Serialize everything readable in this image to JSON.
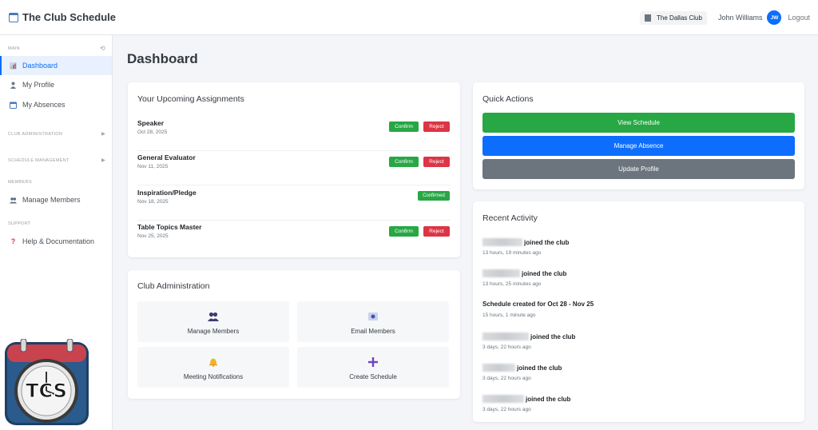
{
  "app": {
    "title": "The Club Schedule"
  },
  "topbar": {
    "club_name": "The Dallas Club",
    "user_name": "John Williams",
    "avatar_initials": "JW",
    "logout_label": "Logout"
  },
  "sidebar": {
    "sections": {
      "main": "MAIN",
      "club_admin": "CLUB ADMINISTRATION",
      "schedule_mgmt": "SCHEDULE MANAGEMENT",
      "members": "MEMBERS",
      "support": "SUPPORT"
    },
    "items": {
      "dashboard": "Dashboard",
      "my_profile": "My Profile",
      "my_absences": "My Absences",
      "manage_members": "Manage Members",
      "help": "Help & Documentation"
    }
  },
  "logo": {
    "text": "TCS"
  },
  "page": {
    "title": "Dashboard"
  },
  "assignments": {
    "title": "Your Upcoming Assignments",
    "confirm_label": "Confirm",
    "reject_label": "Reject",
    "confirmed_label": "Confirmed",
    "items": [
      {
        "role": "Speaker",
        "date": "Oct 28, 2025"
      },
      {
        "role": "General Evaluator",
        "date": "Nov 11, 2025"
      },
      {
        "role": "Inspiration/Pledge",
        "date": "Nov 18, 2025"
      },
      {
        "role": "Table Topics Master",
        "date": "Nov 25, 2025"
      }
    ]
  },
  "club_admin": {
    "title": "Club Administration",
    "tiles": {
      "manage_members": "Manage Members",
      "email_members": "Email Members",
      "meeting_notifications": "Meeting Notifications",
      "create_schedule": "Create Schedule"
    }
  },
  "quick_actions": {
    "title": "Quick Actions",
    "view_schedule": "View Schedule",
    "manage_absence": "Manage Absence",
    "update_profile": "Update Profile"
  },
  "recent_activity": {
    "title": "Recent Activity",
    "items": [
      {
        "text": "joined the club",
        "time": "13 hours, 19 minutes ago"
      },
      {
        "text": "joined the club",
        "time": "13 hours, 25 minutes ago"
      },
      {
        "text": "Schedule created for Oct 28 - Nov 25",
        "time": "15 hours, 1 minute ago"
      },
      {
        "text": "joined the club",
        "time": "3 days, 22 hours ago"
      },
      {
        "text": "joined the club",
        "time": "3 days, 22 hours ago"
      },
      {
        "text": "joined the club",
        "time": "3 days, 22 hours ago"
      }
    ]
  },
  "colors": {
    "primary": "#0d6efd",
    "success": "#28a745",
    "danger": "#dc3545",
    "secondary": "#6c757d"
  }
}
